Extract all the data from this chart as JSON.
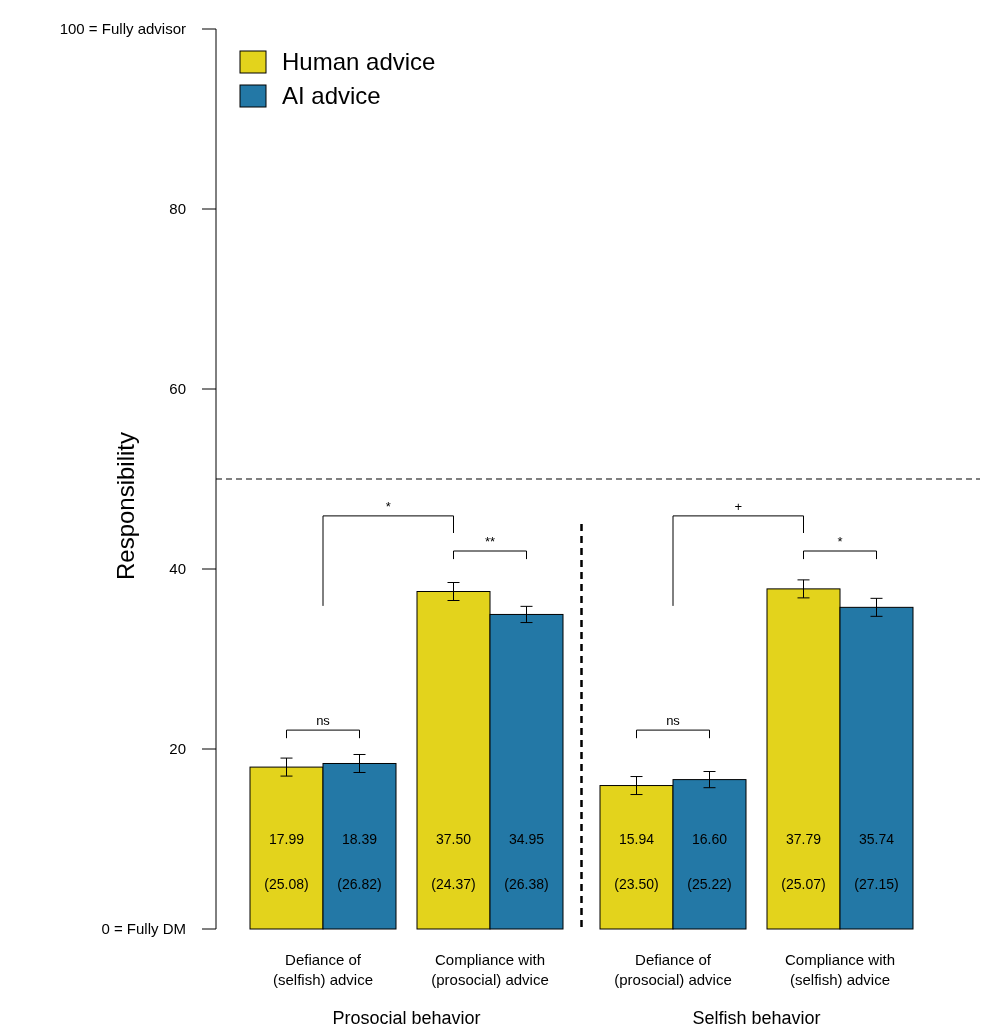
{
  "chart_data": {
    "type": "bar",
    "ylabel": "Responsibility",
    "categories": [
      "Defiance of (selfish) advice",
      "Compliance with (prosocial) advice",
      "Defiance of (prosocial) advice",
      "Compliance with (selfish) advice"
    ],
    "series": [
      {
        "name": "Human advice",
        "color": "#e3d31c",
        "values": [
          17.99,
          37.5,
          15.94,
          37.79
        ],
        "errors": [
          1.0,
          1.0,
          1.0,
          1.0
        ],
        "value_labels": [
          "17.99 (25.08)",
          "37.50 (24.37)",
          "15.94 (23.50)",
          "37.79 (25.07)"
        ]
      },
      {
        "name": "AI advice",
        "color": "#2378a6",
        "values": [
          18.39,
          34.95,
          16.6,
          35.74
        ],
        "errors": [
          1.0,
          0.9,
          0.9,
          1.0
        ],
        "value_labels": [
          "18.39 (26.82)",
          "34.95 (26.38)",
          "16.60 (25.22)",
          "35.74 (27.15)"
        ]
      }
    ],
    "ylim": [
      0,
      100
    ],
    "yticks": [
      {
        "value": 0,
        "label": "0 = Fully DM"
      },
      20,
      40,
      60,
      80,
      {
        "value": 100,
        "label": "100 = Fully advisor"
      }
    ],
    "ref_lines": [
      {
        "axis": "y",
        "value": 50,
        "line_style": "dashed",
        "color": "#000000"
      }
    ],
    "legend": "top left",
    "annotations": [
      "Prosocial behavior",
      "Selfish behavior",
      "ns",
      "*",
      "**",
      "ns",
      "+",
      "*"
    ]
  }
}
